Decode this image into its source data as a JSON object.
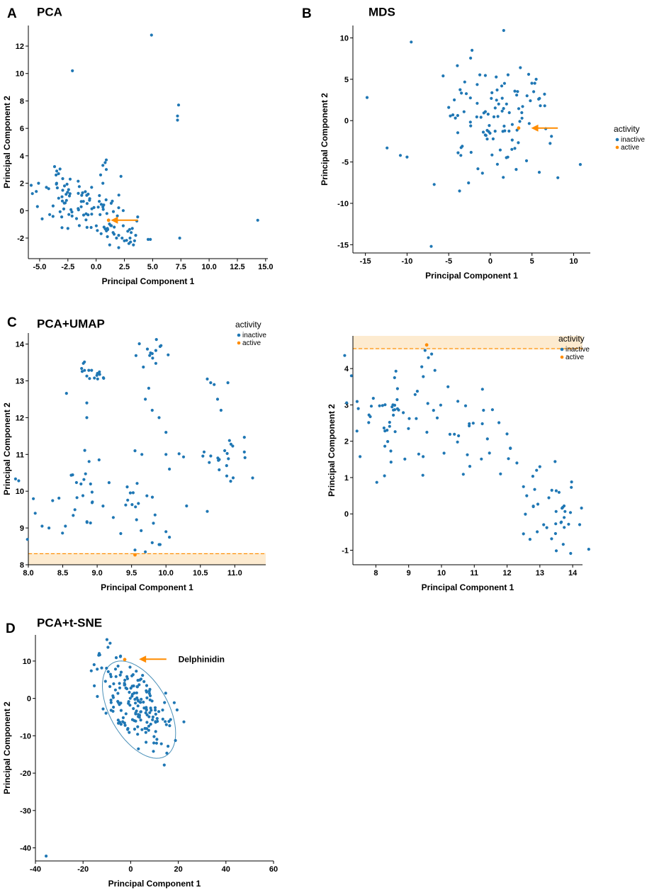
{
  "figure": {
    "colors": {
      "inactive": "#1f77b4",
      "active": "#ff8c00",
      "axis": "#000000",
      "band": "#fdebd0",
      "ellipse": "#4a90b8"
    }
  },
  "chart_data": [
    {
      "id": "A",
      "panel_letter": "A",
      "title": "PCA",
      "type": "scatter",
      "xlabel": "Principal Component 1",
      "ylabel": "Principal Component 2",
      "xlim": [
        -6,
        15.2
      ],
      "ylim": [
        -3.5,
        13.5
      ],
      "xticks": [
        {
          "v": -5,
          "t": "-5.0"
        },
        {
          "v": -2.5,
          "t": "-2.5"
        },
        {
          "v": 0,
          "t": "0.0"
        },
        {
          "v": 2.5,
          "t": "2.5"
        },
        {
          "v": 5,
          "t": "5.0"
        },
        {
          "v": 7.5,
          "t": "7.5"
        },
        {
          "v": 10,
          "t": "10.0"
        },
        {
          "v": 12.5,
          "t": "12.5"
        },
        {
          "v": 15,
          "t": "15.0"
        }
      ],
      "yticks": [
        {
          "v": -2,
          "t": "-2"
        },
        {
          "v": 0,
          "t": "0"
        },
        {
          "v": 2,
          "t": "2"
        },
        {
          "v": 4,
          "t": "4"
        },
        {
          "v": 6,
          "t": "6"
        },
        {
          "v": 8,
          "t": "8"
        },
        {
          "v": 10,
          "t": "10"
        },
        {
          "v": 12,
          "t": "12"
        }
      ],
      "cluster": {
        "n": 95,
        "seed": 11,
        "cx": -1.2,
        "cy": 0.2,
        "rx": 2.2,
        "ry": 0.9,
        "rot": -0.35
      },
      "inactive_extra": [
        [
          -5.3,
          1.4
        ],
        [
          -5.2,
          0.3
        ],
        [
          -4.4,
          1.7
        ],
        [
          -4.2,
          1.6
        ],
        [
          -3.5,
          2.0
        ],
        [
          -2.8,
          1.8
        ],
        [
          -2.3,
          2.3
        ],
        [
          -2.1,
          10.2
        ],
        [
          4.9,
          12.8
        ],
        [
          7.3,
          7.7
        ],
        [
          7.2,
          6.9
        ],
        [
          7.2,
          6.6
        ],
        [
          7.4,
          -2.0
        ],
        [
          14.3,
          -0.7
        ],
        [
          4.8,
          -2.1
        ],
        [
          4.6,
          -2.1
        ],
        [
          0.6,
          3.3
        ],
        [
          0.8,
          3.5
        ],
        [
          0.9,
          3.7
        ],
        [
          0.9,
          3.0
        ],
        [
          0.4,
          2.6
        ],
        [
          2.2,
          2.5
        ],
        [
          -0.4,
          1.7
        ],
        [
          -1.2,
          1.3
        ],
        [
          0.6,
          2.0
        ],
        [
          0.7,
          -1.2
        ],
        [
          1.0,
          -1.3
        ],
        [
          1.5,
          -1.6
        ],
        [
          2.0,
          -1.8
        ],
        [
          2.3,
          -2.0
        ],
        [
          2.5,
          -2.2
        ],
        [
          2.8,
          -1.5
        ],
        [
          3.0,
          -2.0
        ],
        [
          3.2,
          -1.3
        ],
        [
          3.3,
          -2.5
        ],
        [
          3.5,
          -1.8
        ],
        [
          2.0,
          -2.7
        ],
        [
          1.2,
          -2.5
        ],
        [
          1.8,
          -2.0
        ],
        [
          2.9,
          -2.4
        ],
        [
          1.6,
          -1.2
        ],
        [
          3.1,
          -1.6
        ],
        [
          2.4,
          -1.1
        ],
        [
          1.0,
          -1.9
        ],
        [
          3.4,
          -2.2
        ]
      ],
      "active": [
        [
          1.1,
          -0.7
        ]
      ],
      "arrows": [
        {
          "x1": 3.7,
          "y1": -0.7,
          "x2": 1.3,
          "y2": -0.7
        }
      ],
      "legend": {
        "title": "",
        "items": []
      }
    },
    {
      "id": "B",
      "panel_letter": "B",
      "title": "MDS",
      "type": "scatter",
      "xlabel": "Principal Component 1",
      "ylabel": "Principal Component 2",
      "xlim": [
        -16.5,
        12
      ],
      "ylim": [
        -16,
        11.5
      ],
      "xticks": [
        {
          "v": -15,
          "t": "-15"
        },
        {
          "v": -10,
          "t": "-10"
        },
        {
          "v": -5,
          "t": "-5"
        },
        {
          "v": 0,
          "t": "0"
        },
        {
          "v": 5,
          "t": "5"
        },
        {
          "v": 10,
          "t": "10"
        }
      ],
      "yticks": [
        {
          "v": -15,
          "t": "-15"
        },
        {
          "v": -10,
          "t": "-10"
        },
        {
          "v": -5,
          "t": "-5"
        },
        {
          "v": 0,
          "t": "0"
        },
        {
          "v": 5,
          "t": "5"
        },
        {
          "v": 10,
          "t": "10"
        }
      ],
      "cluster": {
        "n": 95,
        "seed": 23,
        "cx": 0.3,
        "cy": 0.2,
        "rx": 3.2,
        "ry": 3.6,
        "rot": 0
      },
      "inactive_extra": [
        [
          -14.8,
          2.8
        ],
        [
          -12.4,
          -3.3
        ],
        [
          -10.8,
          -4.2
        ],
        [
          -10.0,
          -4.4
        ],
        [
          -9.5,
          9.5
        ],
        [
          -7.1,
          -15.2
        ],
        [
          -3.7,
          -8.5
        ],
        [
          -5.0,
          1.6
        ],
        [
          -4.5,
          0.7
        ],
        [
          -2.2,
          8.5
        ],
        [
          1.6,
          10.9
        ],
        [
          3.6,
          6.4
        ],
        [
          4.6,
          5.6
        ],
        [
          5.5,
          5.0
        ],
        [
          5.8,
          2.6
        ],
        [
          6.0,
          1.8
        ],
        [
          5.2,
          3.5
        ],
        [
          4.8,
          2.4
        ],
        [
          4.4,
          3.0
        ],
        [
          8.1,
          -6.9
        ],
        [
          10.8,
          -5.3
        ],
        [
          6.5,
          3.2
        ],
        [
          3.1,
          -5.9
        ]
      ],
      "active": [
        [
          3.4,
          -0.9
        ]
      ],
      "arrows": [
        {
          "x1": 8.1,
          "y1": -0.9,
          "x2": 4.9,
          "y2": -0.9
        }
      ],
      "legend": {
        "title": "activity",
        "items": [
          "inactive",
          "active"
        ]
      }
    },
    {
      "id": "C1",
      "panel_letter": "C",
      "title": "PCA+UMAP",
      "type": "scatter",
      "xlabel": "Principal Component 1",
      "ylabel": "Principal Component 2",
      "xlim": [
        8.0,
        11.45
      ],
      "ylim": [
        8.0,
        14.3
      ],
      "xticks": [
        {
          "v": 8.0,
          "t": "8.0"
        },
        {
          "v": 8.5,
          "t": "8.5"
        },
        {
          "v": 9.0,
          "t": "9.0"
        },
        {
          "v": 9.5,
          "t": "9.5"
        },
        {
          "v": 10.0,
          "t": "10.0"
        },
        {
          "v": 10.5,
          "t": "10.5"
        },
        {
          "v": 11.0,
          "t": "11.0"
        }
      ],
      "yticks": [
        {
          "v": 8,
          "t": "8"
        },
        {
          "v": 9,
          "t": "9"
        },
        {
          "v": 10,
          "t": "10"
        },
        {
          "v": 11,
          "t": "11"
        },
        {
          "v": 12,
          "t": "12"
        },
        {
          "v": 13,
          "t": "13"
        },
        {
          "v": 14,
          "t": "14"
        }
      ],
      "band": {
        "y1": 8.0,
        "y2": 8.32,
        "line": 8.3
      },
      "clusters": [
        {
          "n": 18,
          "seed": 31,
          "cx": 8.95,
          "cy": 13.1,
          "rx": 0.18,
          "ry": 0.2,
          "rot": 0
        },
        {
          "n": 14,
          "seed": 32,
          "cx": 9.85,
          "cy": 13.75,
          "rx": 0.17,
          "ry": 0.17,
          "rot": 0
        },
        {
          "n": 30,
          "seed": 33,
          "cx": 8.65,
          "cy": 9.9,
          "rx": 0.38,
          "ry": 0.55,
          "rot": 0
        },
        {
          "n": 18,
          "seed": 34,
          "cx": 9.55,
          "cy": 9.65,
          "rx": 0.2,
          "ry": 0.5,
          "rot": 0
        },
        {
          "n": 24,
          "seed": 35,
          "cx": 10.85,
          "cy": 10.85,
          "rx": 0.3,
          "ry": 0.28,
          "rot": 0
        }
      ],
      "inactive_extra": [
        [
          8.85,
          12.4
        ],
        [
          8.85,
          12.0
        ],
        [
          9.75,
          12.8
        ],
        [
          9.7,
          12.5
        ],
        [
          9.8,
          12.2
        ],
        [
          9.9,
          12.0
        ],
        [
          10.0,
          11.6
        ],
        [
          10.0,
          11.0
        ],
        [
          10.05,
          10.6
        ],
        [
          10.6,
          13.05
        ],
        [
          10.65,
          12.95
        ],
        [
          10.9,
          12.95
        ],
        [
          10.7,
          12.9
        ],
        [
          10.75,
          12.5
        ],
        [
          10.8,
          12.2
        ],
        [
          9.55,
          11.1
        ],
        [
          9.65,
          11.0
        ],
        [
          9.8,
          8.6
        ],
        [
          9.9,
          8.55
        ],
        [
          9.7,
          8.35
        ],
        [
          9.55,
          8.4
        ],
        [
          10.0,
          8.9
        ],
        [
          10.05,
          8.75
        ],
        [
          10.3,
          9.6
        ],
        [
          10.6,
          9.45
        ],
        [
          8.1,
          9.4
        ],
        [
          8.2,
          9.05
        ],
        [
          8.3,
          9.0
        ]
      ],
      "active": [
        [
          9.55,
          8.27
        ]
      ],
      "arrows": [],
      "legend": {
        "title": "activity",
        "items": [
          "inactive",
          "active"
        ]
      }
    },
    {
      "id": "C2",
      "panel_letter": "",
      "title": "",
      "type": "scatter",
      "xlabel": "Principal Component 1",
      "ylabel": "Principal Component 2",
      "xlim": [
        7.3,
        14.3
      ],
      "ylim": [
        -1.4,
        4.9
      ],
      "xticks": [
        {
          "v": 8,
          "t": "8"
        },
        {
          "v": 9,
          "t": "9"
        },
        {
          "v": 10,
          "t": "10"
        },
        {
          "v": 11,
          "t": "11"
        },
        {
          "v": 12,
          "t": "12"
        },
        {
          "v": 13,
          "t": "13"
        },
        {
          "v": 14,
          "t": "14"
        }
      ],
      "yticks": [
        {
          "v": -1,
          "t": "-1"
        },
        {
          "v": 0,
          "t": "0"
        },
        {
          "v": 1,
          "t": "1"
        },
        {
          "v": 2,
          "t": "2"
        },
        {
          "v": 3,
          "t": "3"
        },
        {
          "v": 4,
          "t": "4"
        }
      ],
      "band": {
        "y1": 4.52,
        "y2": 4.9,
        "line": 4.55
      },
      "clusters": [
        {
          "n": 55,
          "seed": 41,
          "cx": 8.7,
          "cy": 2.6,
          "rx": 0.75,
          "ry": 0.8,
          "rot": 0
        },
        {
          "n": 22,
          "seed": 42,
          "cx": 11.0,
          "cy": 2.3,
          "rx": 0.5,
          "ry": 0.55,
          "rot": 0
        },
        {
          "n": 35,
          "seed": 43,
          "cx": 13.5,
          "cy": -0.1,
          "rx": 0.45,
          "ry": 0.7,
          "rot": 0
        }
      ],
      "inactive_extra": [
        [
          9.5,
          4.5
        ],
        [
          9.6,
          4.3
        ],
        [
          9.7,
          4.4
        ],
        [
          9.4,
          4.05
        ],
        [
          9.8,
          3.95
        ],
        [
          10.2,
          3.5
        ],
        [
          10.5,
          3.1
        ],
        [
          12.1,
          1.8
        ],
        [
          12.3,
          1.4
        ],
        [
          12.5,
          0.75
        ],
        [
          12.6,
          0.5
        ],
        [
          12.8,
          0.2
        ],
        [
          12.5,
          -0.55
        ],
        [
          12.7,
          -0.7
        ],
        [
          12.9,
          1.2
        ],
        [
          13.0,
          1.3
        ],
        [
          11.8,
          1.1
        ],
        [
          12.0,
          2.2
        ]
      ],
      "active": [
        [
          9.55,
          4.65
        ]
      ],
      "arrows": [],
      "legend": {
        "title": "activity",
        "items": [
          "inactive",
          "active"
        ]
      }
    },
    {
      "id": "D",
      "panel_letter": "D",
      "title": "PCA+t-SNE",
      "type": "scatter",
      "xlabel": "Principal Component 1",
      "ylabel": "Principal Component 2",
      "xlim": [
        -40,
        60
      ],
      "ylim": [
        -43.5,
        17
      ],
      "xticks": [
        {
          "v": -40,
          "t": "-40"
        },
        {
          "v": -20,
          "t": "-20"
        },
        {
          "v": 0,
          "t": "0"
        },
        {
          "v": 20,
          "t": "20"
        },
        {
          "v": 40,
          "t": "40"
        },
        {
          "v": 60,
          "t": "60"
        }
      ],
      "yticks": [
        {
          "v": -40,
          "t": "-40"
        },
        {
          "v": -30,
          "t": "-30"
        },
        {
          "v": -20,
          "t": "-20"
        },
        {
          "v": -10,
          "t": "-10"
        },
        {
          "v": 0,
          "t": "0"
        },
        {
          "v": 10,
          "t": "10"
        }
      ],
      "cluster": {
        "n": 180,
        "seed": 53,
        "cx": 1.8,
        "cy": -1.0,
        "rx": 9,
        "ry": 4.3,
        "rot": -0.62
      },
      "ellipse": {
        "cx": 3.5,
        "cy": -3.0,
        "rx": 17.5,
        "ry": 10,
        "rot": -0.62
      },
      "inactive_extra": [
        [
          -35.5,
          -42.2
        ]
      ],
      "active": [
        [
          -2.5,
          10.4
        ]
      ],
      "arrows": [
        {
          "x1": 15,
          "y1": 10.5,
          "x2": 3.5,
          "y2": 10.5
        }
      ],
      "annotation": {
        "text": "Delphinidin",
        "x": 20,
        "y": 10.5
      },
      "legend": {
        "title": "",
        "items": []
      }
    }
  ]
}
